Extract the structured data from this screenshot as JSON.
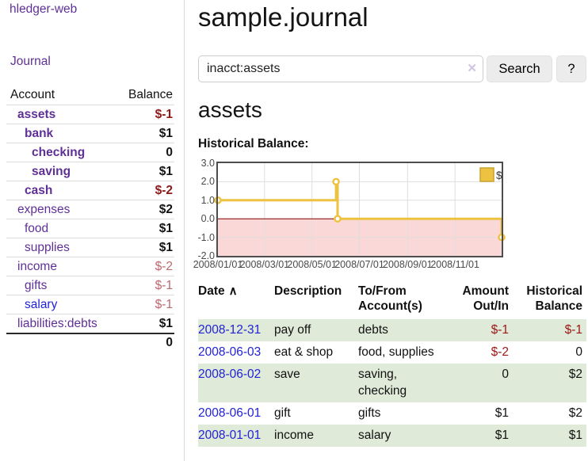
{
  "sidebar": {
    "brand": "hledger-web",
    "nav_journal": "Journal",
    "table": {
      "account_header": "Account",
      "balance_header": "Balance",
      "accounts": [
        {
          "name": "assets",
          "level": 1,
          "bold": true,
          "balance": "$-1",
          "balance_style": "neg-strong"
        },
        {
          "name": "bank",
          "level": 2,
          "bold": true,
          "balance": "$1",
          "balance_style": "strong"
        },
        {
          "name": "checking",
          "level": 3,
          "bold": true,
          "balance": "0",
          "balance_style": "strong"
        },
        {
          "name": "saving",
          "level": 3,
          "bold": true,
          "balance": "$1",
          "balance_style": "strong"
        },
        {
          "name": "cash",
          "level": 2,
          "bold": true,
          "balance": "$-2",
          "balance_style": "neg-strong"
        },
        {
          "name": "expenses",
          "level": 1,
          "bold": false,
          "balance": "$2",
          "balance_style": "strong"
        },
        {
          "name": "food",
          "level": 2,
          "bold": false,
          "balance": "$1",
          "balance_style": "strong"
        },
        {
          "name": "supplies",
          "level": 2,
          "bold": false,
          "balance": "$1",
          "balance_style": "strong"
        },
        {
          "name": "income",
          "level": 1,
          "bold": false,
          "balance": "$-2",
          "balance_style": "neg-soft"
        },
        {
          "name": "gifts",
          "level": 2,
          "bold": false,
          "balance": "$-1",
          "balance_style": "neg-soft"
        },
        {
          "name": "salary",
          "level": 2,
          "bold": false,
          "link_color": "blue",
          "balance": "$-1",
          "balance_style": "neg-soft"
        },
        {
          "name": "liabilities:debts",
          "level": 1,
          "bold": false,
          "balance": "$1",
          "balance_style": "strong"
        }
      ],
      "total": "0"
    }
  },
  "header": {
    "title": "sample.journal"
  },
  "search": {
    "value": "inacct:assets",
    "clear_label": "✕",
    "button": "Search",
    "help_button": "?"
  },
  "account_page": {
    "title": "assets",
    "chart_label": "Historical Balance:"
  },
  "chart_data": {
    "type": "line",
    "title": "Historical Balance:",
    "style": "step",
    "x_start": "2008-01-01",
    "x_end": "2008-12-31",
    "ylim": [
      -2.0,
      3.0
    ],
    "y_ticks": [
      3.0,
      2.0,
      1.0,
      0.0,
      -1.0,
      -2.0
    ],
    "x_tick_dates": [
      "2008-01-01",
      "2008-03-01",
      "2008-05-01",
      "2008-07-01",
      "2008-09-01",
      "2008-11-01"
    ],
    "x_tick_labels": [
      "2008/01/01",
      "2008/03/01",
      "2008/05/01",
      "2008/07/01",
      "2008/09/01",
      "2008/11/01"
    ],
    "grid": true,
    "legend": {
      "label": "$",
      "position": "top-right"
    },
    "series": [
      {
        "name": "$",
        "color": "#edc240",
        "marker": "open-circle",
        "points": [
          {
            "date": "2008-01-01",
            "value": 1
          },
          {
            "date": "2008-06-01",
            "value": 2
          },
          {
            "date": "2008-06-03",
            "value": 0
          },
          {
            "date": "2008-12-31",
            "value": -1
          }
        ]
      }
    ],
    "negative_region_color": "#fbd8d8",
    "zero_line_color": "#8b0000",
    "grid_color": "#dedede",
    "border_color": "#4d4d4d"
  },
  "register": {
    "columns": {
      "date": "Date",
      "sort_caret": "∧",
      "description": "Description",
      "accounts": "To/From Account(s)",
      "amount": "Amount Out/In",
      "balance": "Historical Balance"
    },
    "rows": [
      {
        "date": "2008-12-31",
        "description": "pay off",
        "accounts": "debts",
        "amount": "$-1",
        "amount_neg": true,
        "balance": "$-1",
        "balance_neg": true,
        "shaded": true
      },
      {
        "date": "2008-06-03",
        "description": "eat & shop",
        "accounts": "food, supplies",
        "amount": "$-2",
        "amount_neg": true,
        "balance": "0",
        "balance_neg": false,
        "shaded": false
      },
      {
        "date": "2008-06-02",
        "description": "save",
        "accounts": "saving, checking",
        "amount": "0",
        "amount_neg": false,
        "balance": "$2",
        "balance_neg": false,
        "shaded": true
      },
      {
        "date": "2008-06-01",
        "description": "gift",
        "accounts": "gifts",
        "amount": "$1",
        "amount_neg": false,
        "balance": "$2",
        "balance_neg": false,
        "shaded": false
      },
      {
        "date": "2008-01-01",
        "description": "income",
        "accounts": "salary",
        "amount": "$1",
        "amount_neg": false,
        "balance": "$1",
        "balance_neg": false,
        "shaded": true
      }
    ]
  }
}
